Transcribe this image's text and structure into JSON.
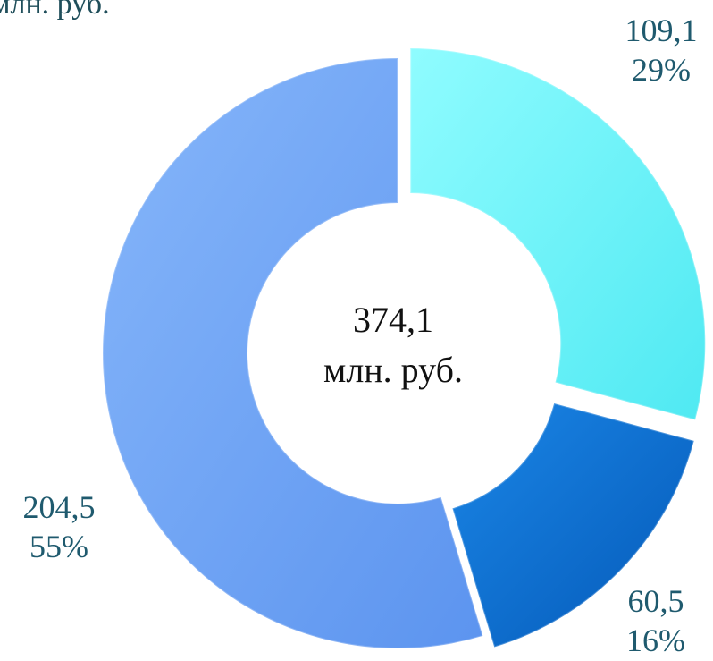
{
  "header": {
    "unit_cut": "млн. руб."
  },
  "chart_data": {
    "type": "pie",
    "title": "",
    "center_value": "374,1",
    "center_unit": "млн. руб.",
    "total": 374.1,
    "unit": "млн. руб.",
    "slices": [
      {
        "value_text": "109,1",
        "percent_text": "29%",
        "value": 109.1,
        "percent": 29,
        "color": "#63f7fb",
        "exploded": true
      },
      {
        "value_text": "60,5",
        "percent_text": "16%",
        "value": 60.5,
        "percent": 16,
        "color": "#0a73d6",
        "exploded": true
      },
      {
        "value_text": "204,5",
        "percent_text": "55%",
        "value": 204.5,
        "percent": 55,
        "color": "#6ea6f6",
        "exploded": false
      }
    ],
    "legend": "none",
    "grid": false
  }
}
